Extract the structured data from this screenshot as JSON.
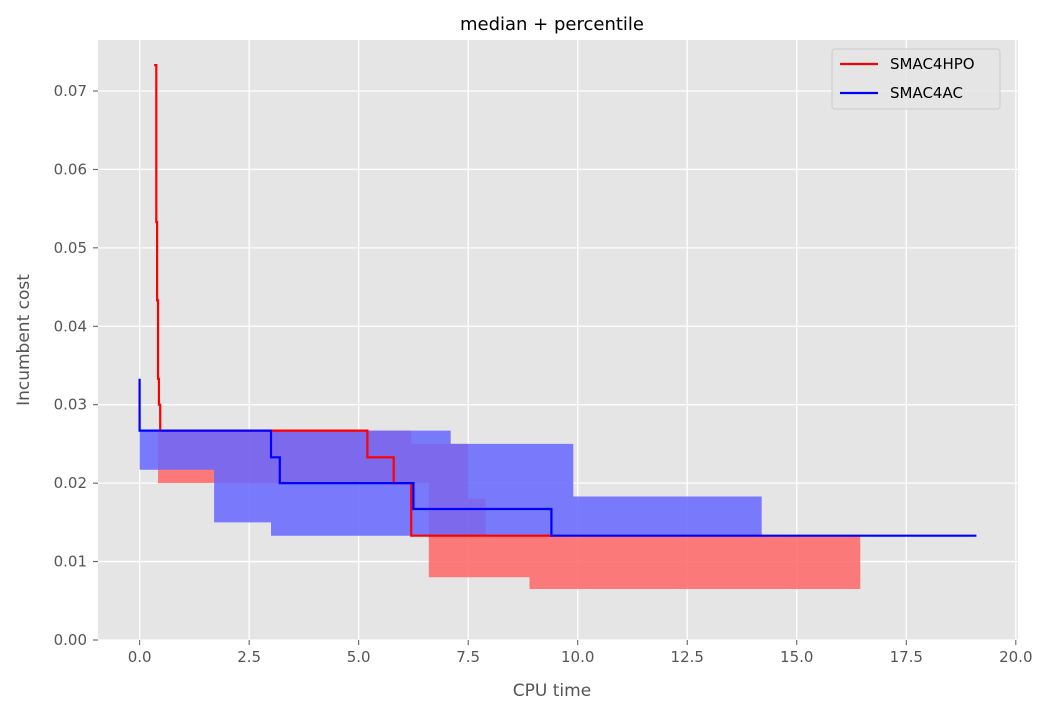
{
  "chart_data": {
    "type": "line",
    "title": "median + percentile",
    "xlabel": "CPU time",
    "ylabel": "Incumbent cost",
    "xlim": [
      -0.95,
      20.05
    ],
    "ylim": [
      0,
      0.0765
    ],
    "xticks": [
      0.0,
      2.5,
      5.0,
      7.5,
      10.0,
      12.5,
      15.0,
      17.5,
      20.0
    ],
    "xtick_labels": [
      "0.0",
      "2.5",
      "5.0",
      "7.5",
      "10.0",
      "12.5",
      "15.0",
      "17.5",
      "20.0"
    ],
    "yticks": [
      0.0,
      0.01,
      0.02,
      0.03,
      0.04,
      0.05,
      0.06,
      0.07
    ],
    "ytick_labels": [
      "0.00",
      "0.01",
      "0.02",
      "0.03",
      "0.04",
      "0.05",
      "0.06",
      "0.07"
    ],
    "grid": true,
    "legend_position": "top-right",
    "series": [
      {
        "name": "SMAC4HPO",
        "color": "#ff0000",
        "band_color": "#ff6666",
        "median": [
          [
            0.33,
            0.0733
          ],
          [
            0.38,
            0.0733
          ],
          [
            0.38,
            0.0533
          ],
          [
            0.4,
            0.0533
          ],
          [
            0.4,
            0.0433
          ],
          [
            0.42,
            0.0433
          ],
          [
            0.42,
            0.0333
          ],
          [
            0.44,
            0.0333
          ],
          [
            0.44,
            0.03
          ],
          [
            0.47,
            0.03
          ],
          [
            0.47,
            0.0267
          ],
          [
            5.2,
            0.0267
          ],
          [
            5.2,
            0.0233
          ],
          [
            5.8,
            0.0233
          ],
          [
            5.8,
            0.02
          ],
          [
            6.2,
            0.02
          ],
          [
            6.2,
            0.0133
          ],
          [
            9.4,
            0.0133
          ]
        ],
        "lower": [
          [
            0.42,
            0.02
          ],
          [
            1.1,
            0.02
          ],
          [
            1.1,
            0.02
          ],
          [
            5.4,
            0.02
          ],
          [
            5.4,
            0.02
          ],
          [
            6.6,
            0.02
          ],
          [
            6.6,
            0.008
          ],
          [
            8.9,
            0.008
          ],
          [
            8.9,
            0.0065
          ],
          [
            16.45,
            0.0065
          ]
        ],
        "upper": [
          [
            0.42,
            0.0267
          ],
          [
            6.2,
            0.0267
          ],
          [
            6.2,
            0.025
          ],
          [
            7.5,
            0.025
          ],
          [
            7.5,
            0.018
          ],
          [
            7.9,
            0.018
          ],
          [
            7.9,
            0.0133
          ],
          [
            16.45,
            0.0133
          ]
        ]
      },
      {
        "name": "SMAC4AC",
        "color": "#0000ff",
        "band_color": "#6666ff",
        "median": [
          [
            0.0,
            0.0333
          ],
          [
            0.0,
            0.0267
          ],
          [
            3.0,
            0.0267
          ],
          [
            3.0,
            0.0233
          ],
          [
            3.2,
            0.0233
          ],
          [
            3.2,
            0.02
          ],
          [
            6.25,
            0.02
          ],
          [
            6.25,
            0.0167
          ],
          [
            9.4,
            0.0167
          ],
          [
            9.4,
            0.0133
          ],
          [
            19.1,
            0.0133
          ]
        ],
        "lower": [
          [
            0.0,
            0.0217
          ],
          [
            1.7,
            0.0217
          ],
          [
            1.7,
            0.015
          ],
          [
            3.0,
            0.015
          ],
          [
            3.0,
            0.0133
          ],
          [
            14.2,
            0.0133
          ]
        ],
        "upper": [
          [
            0.0,
            0.0267
          ],
          [
            7.1,
            0.0267
          ],
          [
            7.1,
            0.025
          ],
          [
            9.9,
            0.025
          ],
          [
            9.9,
            0.0183
          ],
          [
            14.2,
            0.0183
          ]
        ]
      }
    ]
  }
}
